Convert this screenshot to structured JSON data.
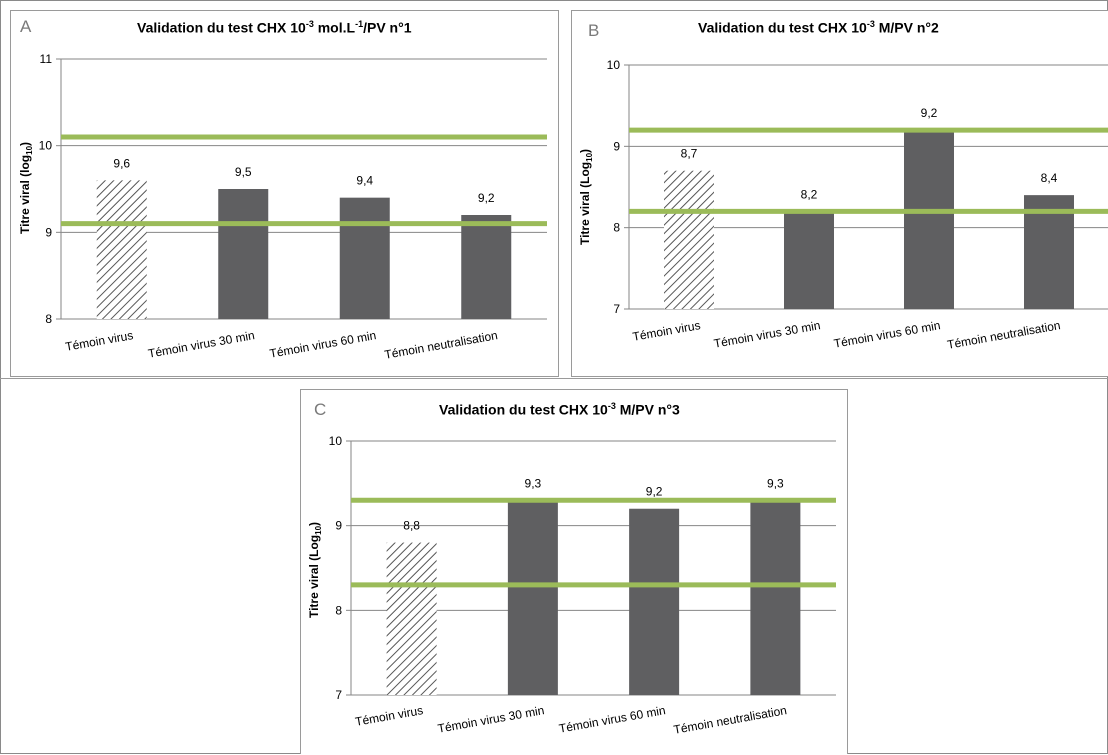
{
  "colors": {
    "bar_fill": "#5f5f61",
    "hatch_stroke": "#555555",
    "threshold_line": "#9bbb59",
    "axis": "#868686",
    "text": "#000000",
    "panel_letter": "#7a7a7a"
  },
  "chart_data": [
    {
      "panel": "A",
      "type": "bar",
      "title": {
        "pre": "Validation du test CHX 10",
        "sup1": "-3",
        "mid": " mol.L",
        "sup2": "-1",
        "post": "/PV n°1"
      },
      "ylabel": {
        "pre": "Titre viral (log",
        "sub": "10",
        "post": ")"
      },
      "ylim": [
        8,
        11
      ],
      "yticks": [
        "8",
        "9",
        "10",
        "11"
      ],
      "grid": true,
      "categories": [
        "Témoin virus",
        "Témoin virus 30 min",
        "Témoin virus 60 min",
        "Témoin neutralisation"
      ],
      "values": [
        9.6,
        9.5,
        9.4,
        9.2
      ],
      "labels": [
        "9,6",
        "9,5",
        "9,4",
        "9,2"
      ],
      "hatched": [
        true,
        false,
        false,
        false
      ],
      "thresholds": [
        10.1,
        9.1
      ]
    },
    {
      "panel": "B",
      "type": "bar",
      "title": {
        "pre": "Validation du test CHX 10",
        "sup1": "-3",
        "mid": " M/PV n°2",
        "sup2": "",
        "post": ""
      },
      "ylabel": {
        "pre": "Titre viral (Log",
        "sub": "10",
        "post": ")"
      },
      "ylim": [
        7,
        10
      ],
      "yticks": [
        "7",
        "8",
        "9",
        "10"
      ],
      "grid": true,
      "categories": [
        "Témoin virus",
        "Témoin virus 30 min",
        "Témoin virus 60 min",
        "Témoin neutralisation"
      ],
      "values": [
        8.7,
        8.2,
        9.2,
        8.4
      ],
      "labels": [
        "8,7",
        "8,2",
        "9,2",
        "8,4"
      ],
      "hatched": [
        true,
        false,
        false,
        false
      ],
      "thresholds": [
        9.2,
        8.2
      ]
    },
    {
      "panel": "C",
      "type": "bar",
      "title": {
        "pre": "Validation du test CHX 10",
        "sup1": "-3",
        "mid": " M/PV n°3",
        "sup2": "",
        "post": ""
      },
      "ylabel": {
        "pre": "Titre viral (Log",
        "sub": "10",
        "post": ")"
      },
      "ylim": [
        7,
        10
      ],
      "yticks": [
        "7",
        "8",
        "9",
        "10"
      ],
      "grid": true,
      "categories": [
        "Témoin virus",
        "Témoin virus 30 min",
        "Témoin virus 60 min",
        "Témoin neutralisation"
      ],
      "values": [
        8.8,
        9.3,
        9.2,
        9.3
      ],
      "labels": [
        "8,8",
        "9,3",
        "9,2",
        "9,3"
      ],
      "hatched": [
        true,
        false,
        false,
        false
      ],
      "thresholds": [
        9.3,
        8.3
      ]
    }
  ]
}
